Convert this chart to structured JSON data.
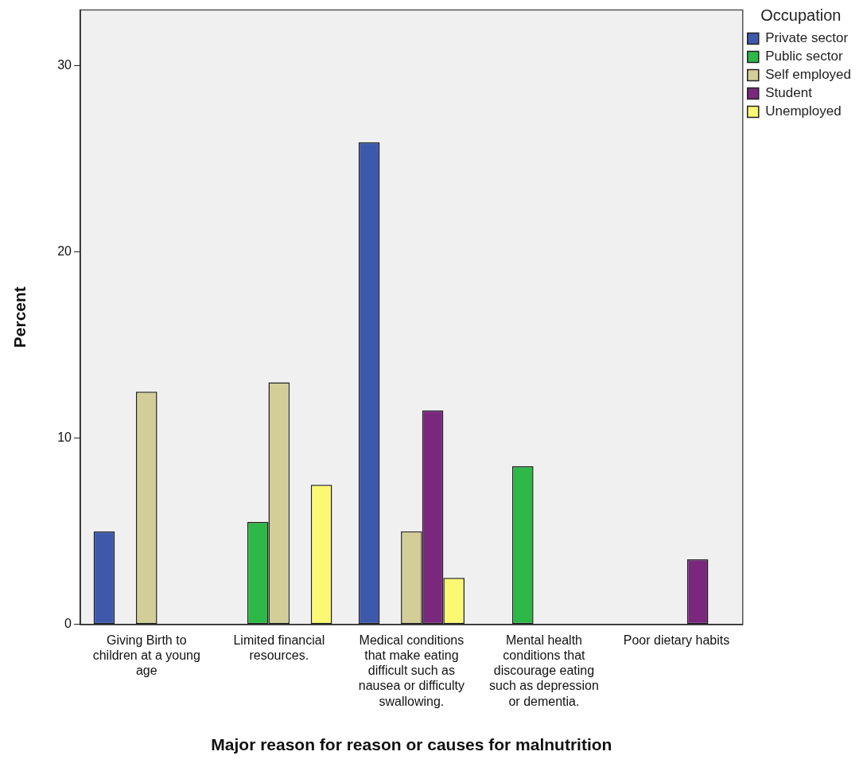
{
  "chart_data": {
    "type": "bar",
    "xlabel": "Major reason for reason or causes for malnutrition",
    "ylabel": "Percent",
    "legend_title": "Occupation",
    "legend": "right",
    "categories": [
      "Giving Birth to children at a young age",
      "Limited financial resources.",
      "Medical conditions that make eating difficult such as nausea or difficulty swallowing.",
      "Mental health conditions that discourage eating such as depression or dementia.",
      "Poor dietary habits"
    ],
    "series": [
      {
        "name": "Private sector",
        "color": "#3e58ac",
        "values": [
          5,
          null,
          25.9,
          null,
          null
        ]
      },
      {
        "name": "Public sector",
        "color": "#2eb848",
        "values": [
          null,
          5.5,
          null,
          8.5,
          null
        ]
      },
      {
        "name": "Self employed",
        "color": "#d3ce97",
        "values": [
          12.5,
          13,
          5,
          null,
          null
        ]
      },
      {
        "name": "Student",
        "color": "#79287d",
        "values": [
          null,
          null,
          11.5,
          null,
          3.5
        ]
      },
      {
        "name": "Unemployed",
        "color": "#fbf873",
        "values": [
          null,
          7.5,
          2.5,
          null,
          null
        ]
      }
    ],
    "ylim": [
      0,
      33
    ],
    "yticks": [
      0,
      10,
      20,
      30
    ],
    "grid": false
  }
}
